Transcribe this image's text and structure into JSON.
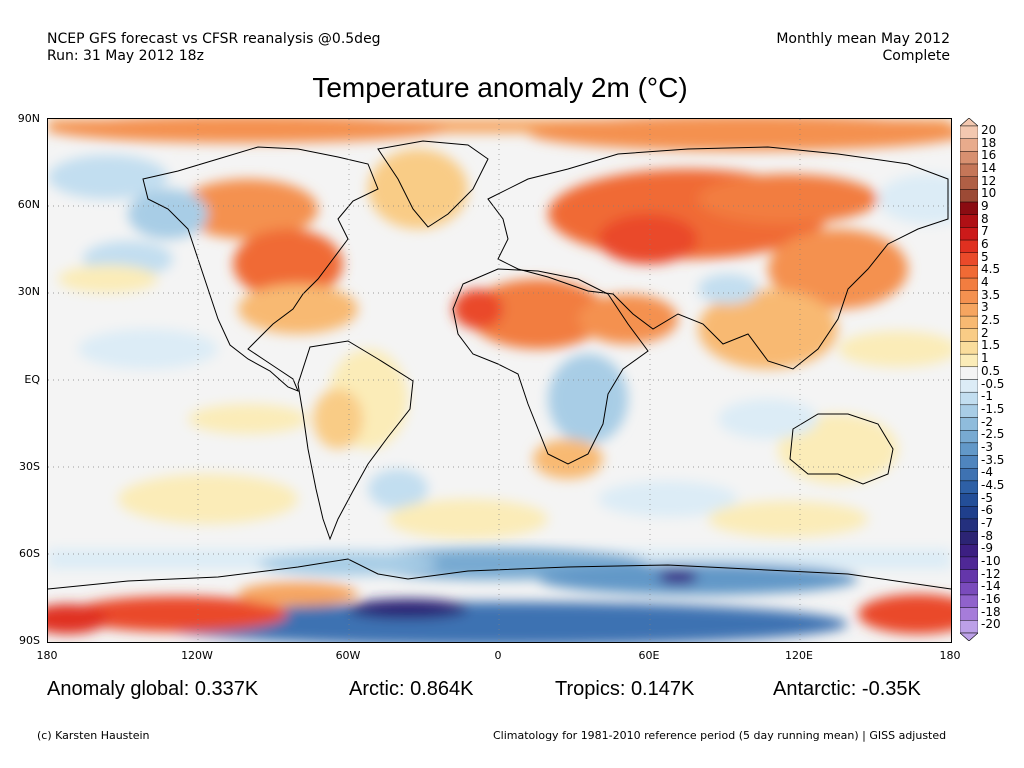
{
  "header": {
    "line1_left": "NCEP GFS forecast vs CFSR reanalysis @0.5deg",
    "line2_left": "Run: 31 May 2012 18z",
    "line1_right": "Monthly mean May 2012",
    "line2_right": "Complete"
  },
  "title": "Temperature anomaly 2m (°C)",
  "lat_labels": [
    "90N",
    "60N",
    "30N",
    "EQ",
    "30S",
    "60S",
    "90S"
  ],
  "lon_labels": [
    "180",
    "120W",
    "60W",
    "0",
    "60E",
    "120E",
    "180"
  ],
  "colorbar": {
    "labels": [
      "20",
      "18",
      "16",
      "14",
      "12",
      "10",
      "9",
      "8",
      "7",
      "6",
      "5",
      "4.5",
      "4",
      "3.5",
      "3",
      "2.5",
      "2",
      "1.5",
      "1",
      "0.5",
      "-0.5",
      "-1",
      "-1.5",
      "-2",
      "-2.5",
      "-3",
      "-3.5",
      "-4",
      "-4.5",
      "-5",
      "-6",
      "-7",
      "-8",
      "-9",
      "-10",
      "-12",
      "-14",
      "-16",
      "-18",
      "-20"
    ],
    "colors": [
      "#f3c8b0",
      "#e8ab8c",
      "#d89070",
      "#c57658",
      "#b05f45",
      "#9c4a35",
      "#8b0c12",
      "#b01015",
      "#cc1a1a",
      "#e03020",
      "#ea4a2a",
      "#f06a35",
      "#f27d40",
      "#f49150",
      "#f6a560",
      "#f8b972",
      "#f9cc86",
      "#fadd9c",
      "#fbecb8",
      "#f4f4f4",
      "#dcecf6",
      "#c2def0",
      "#a8cde6",
      "#8fbcdc",
      "#78aad2",
      "#6298c8",
      "#4f85be",
      "#3e72b2",
      "#2e60a6",
      "#234e98",
      "#1f3f8c",
      "#24307e",
      "#2c2474",
      "#3c1f82",
      "#4f2896",
      "#6436aa",
      "#7a4bbc",
      "#9062cc",
      "#a67cda",
      "#bca0e8"
    ]
  },
  "map": {
    "ocean_color": "#f4f4f4",
    "land_outline_color": "#000000",
    "grid_color": "#808080"
  },
  "stats": {
    "global": "Anomaly global: 0.337K",
    "arctic": "Arctic: 0.864K",
    "tropics": "Tropics: 0.147K",
    "antarctic": "Antarctic: -0.35K"
  },
  "footer": {
    "left": "(c) Karsten Haustein",
    "right": "Climatology for 1981-2010 reference period (5 day running mean) | GISS adjusted"
  }
}
